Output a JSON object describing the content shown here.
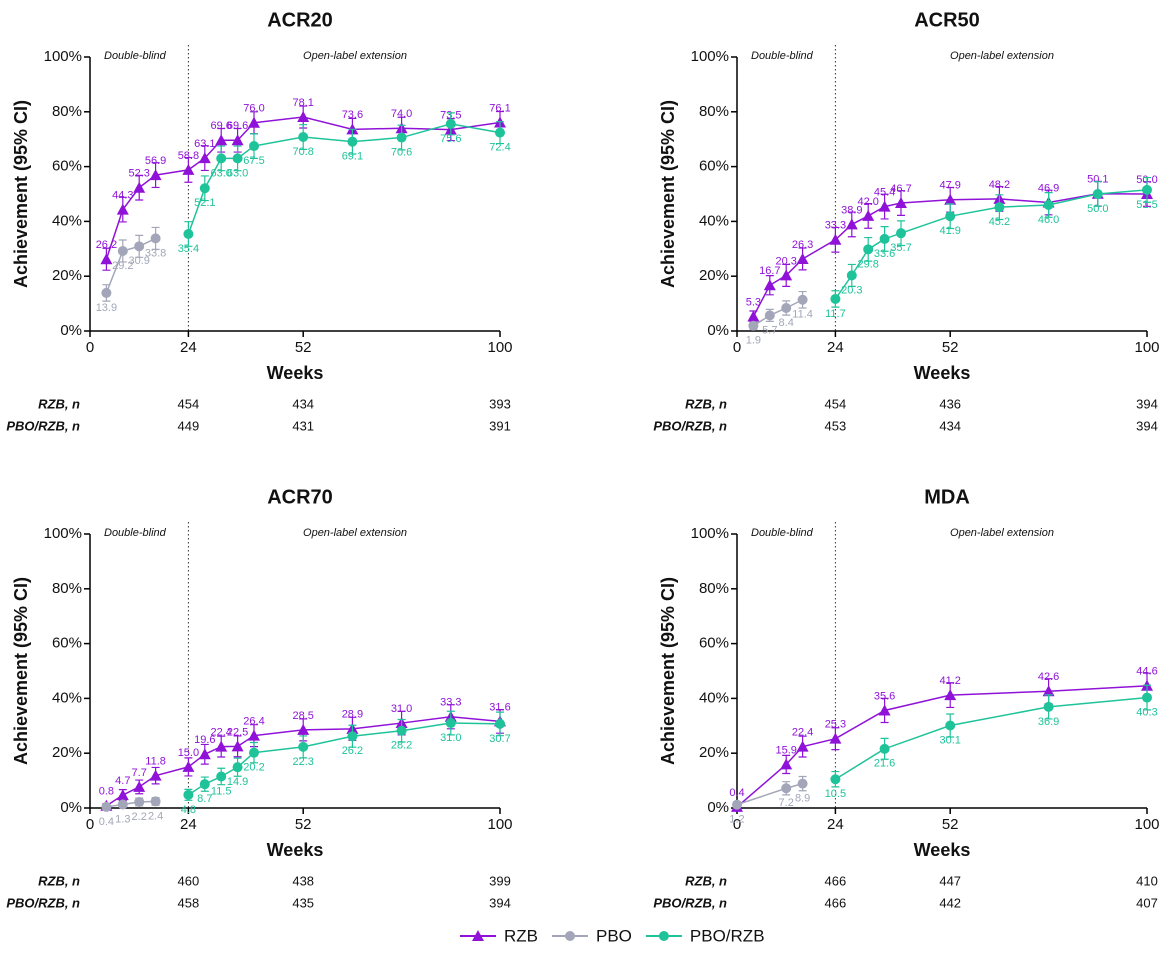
{
  "chart_data": [
    {
      "type": "line",
      "title": "ACR20",
      "x_label": "Weeks",
      "y_label": "Achievement (95% CI)",
      "xlim": [
        0,
        100
      ],
      "xticks": [
        0,
        24,
        52,
        100
      ],
      "ylim": [
        0,
        100
      ],
      "yticks": [
        {
          "value": 0,
          "label": "0%"
        },
        {
          "value": 20,
          "label": "20%"
        },
        {
          "value": 40,
          "label": "40%"
        },
        {
          "value": 60,
          "label": "60%"
        },
        {
          "value": 80,
          "label": "80%"
        },
        {
          "value": 100,
          "label": "100%"
        }
      ],
      "vline": 24,
      "annotations": [
        "Double-blind",
        "Open-label extension"
      ],
      "series": [
        {
          "name": "RZB",
          "color": "#9012d8",
          "marker": "triangle",
          "x": [
            4,
            8,
            12,
            16,
            24,
            28,
            32,
            36,
            40,
            52,
            64,
            76,
            88,
            100
          ],
          "values": [
            26.2,
            44.3,
            52.3,
            56.9,
            58.8,
            63.1,
            69.6,
            69.6,
            76.0,
            78.1,
            73.6,
            74.0,
            73.5,
            76.1
          ],
          "value_labels": [
            "26.2",
            "44.3",
            "52.3",
            "56.9",
            "58.8",
            "63.1",
            "69.6",
            "69.6",
            "76.0",
            "78.1",
            "73.6",
            "74.0",
            "73.5",
            "76.1"
          ],
          "errors": [
            4,
            4.5,
            4.5,
            4.5,
            4.5,
            4.5,
            4.3,
            4.3,
            4,
            4,
            4,
            4,
            4,
            4
          ]
        },
        {
          "name": "PBO",
          "color": "#a3a6b8",
          "marker": "circle",
          "x": [
            4,
            8,
            12,
            16
          ],
          "values": [
            13.9,
            29.2,
            30.9,
            33.8
          ],
          "value_labels": [
            "13.9",
            "29.2",
            "30.9",
            "33.8"
          ],
          "errors": [
            3,
            4,
            4,
            4
          ]
        },
        {
          "name": "PBO/RZB",
          "color": "#1fc39a",
          "marker": "circle",
          "x": [
            24,
            28,
            32,
            36,
            40,
            52,
            64,
            76,
            88,
            100
          ],
          "values": [
            35.4,
            52.1,
            63.0,
            63.0,
            67.5,
            70.8,
            69.1,
            70.6,
            75.6,
            72.4
          ],
          "value_labels": [
            "35.4",
            "52.1",
            "63.0",
            "63.0",
            "67.5",
            "70.8",
            "69.1",
            "70.6",
            "75.6",
            "72.4"
          ],
          "errors": [
            4.5,
            4.5,
            4.5,
            4.5,
            4.5,
            4.5,
            4.5,
            4.5,
            4,
            4
          ]
        }
      ],
      "table": {
        "rows": [
          {
            "name": "RZB, n",
            "values": [
              454,
              434,
              393
            ]
          },
          {
            "name": "PBO/RZB, n",
            "values": [
              449,
              431,
              391
            ]
          }
        ]
      }
    },
    {
      "type": "line",
      "title": "ACR50",
      "x_label": "Weeks",
      "y_label": "Achievement (95% CI)",
      "xlim": [
        0,
        100
      ],
      "xticks": [
        0,
        24,
        52,
        100
      ],
      "ylim": [
        0,
        100
      ],
      "yticks": [
        {
          "value": 0,
          "label": "0%"
        },
        {
          "value": 20,
          "label": "20%"
        },
        {
          "value": 40,
          "label": "40%"
        },
        {
          "value": 60,
          "label": "60%"
        },
        {
          "value": 80,
          "label": "80%"
        },
        {
          "value": 100,
          "label": "100%"
        }
      ],
      "vline": 24,
      "annotations": [
        "Double-blind",
        "Open-label extension"
      ],
      "series": [
        {
          "name": "RZB",
          "color": "#9012d8",
          "marker": "triangle",
          "x": [
            4,
            8,
            12,
            16,
            24,
            28,
            32,
            36,
            40,
            52,
            64,
            76,
            88,
            100
          ],
          "values": [
            5.3,
            16.7,
            20.3,
            26.3,
            33.3,
            38.9,
            42.0,
            45.4,
            46.7,
            47.9,
            48.2,
            46.9,
            50.1,
            50.0
          ],
          "value_labels": [
            "5.3",
            "16.7",
            "20.3",
            "26.3",
            "33.3",
            "38.9",
            "42.0",
            "45.4",
            "46.7",
            "47.9",
            "48.2",
            "46.9",
            "50.1",
            "50.0"
          ],
          "errors": [
            2,
            3.5,
            4,
            4,
            4.5,
            4.5,
            4.5,
            4.5,
            4.5,
            4.5,
            4.5,
            4.5,
            4.5,
            4.5
          ]
        },
        {
          "name": "PBO",
          "color": "#a3a6b8",
          "marker": "circle",
          "x": [
            4,
            8,
            12,
            16
          ],
          "values": [
            1.9,
            5.7,
            8.4,
            11.4
          ],
          "value_labels": [
            "1.9",
            "5.7",
            "8.4",
            "11.4"
          ],
          "errors": [
            1.3,
            2.2,
            2.6,
            3
          ]
        },
        {
          "name": "PBO/RZB",
          "color": "#1fc39a",
          "marker": "circle",
          "x": [
            24,
            28,
            32,
            36,
            40,
            52,
            64,
            76,
            88,
            100
          ],
          "values": [
            11.7,
            20.3,
            29.8,
            33.6,
            35.7,
            41.9,
            45.2,
            46.0,
            50.0,
            51.5
          ],
          "value_labels": [
            "11.7",
            "20.3",
            "29.8",
            "33.6",
            "35.7",
            "41.9",
            "45.2",
            "46.0",
            "50.0",
            "51.5"
          ],
          "errors": [
            3,
            4,
            4.3,
            4.5,
            4.5,
            4.5,
            4.5,
            4.5,
            4.5,
            4.5
          ]
        }
      ],
      "table": {
        "rows": [
          {
            "name": "RZB, n",
            "values": [
              454,
              436,
              394
            ]
          },
          {
            "name": "PBO/RZB, n",
            "values": [
              453,
              434,
              394
            ]
          }
        ]
      }
    },
    {
      "type": "line",
      "title": "ACR70",
      "x_label": "Weeks",
      "y_label": "Achievement (95% CI)",
      "xlim": [
        0,
        100
      ],
      "xticks": [
        0,
        24,
        52,
        100
      ],
      "ylim": [
        0,
        100
      ],
      "yticks": [
        {
          "value": 0,
          "label": "0%"
        },
        {
          "value": 20,
          "label": "20%"
        },
        {
          "value": 40,
          "label": "40%"
        },
        {
          "value": 60,
          "label": "60%"
        },
        {
          "value": 80,
          "label": "80%"
        },
        {
          "value": 100,
          "label": "100%"
        }
      ],
      "vline": 24,
      "annotations": [
        "Double-blind",
        "Open-label extension"
      ],
      "series": [
        {
          "name": "RZB",
          "color": "#9012d8",
          "marker": "triangle",
          "x": [
            4,
            8,
            12,
            16,
            24,
            28,
            32,
            36,
            40,
            52,
            64,
            76,
            88,
            100
          ],
          "values": [
            0.8,
            4.7,
            7.7,
            11.8,
            15.0,
            19.6,
            22.4,
            22.5,
            26.4,
            28.5,
            28.9,
            31.0,
            33.3,
            31.6
          ],
          "value_labels": [
            "0.8",
            "4.7",
            "7.7",
            "11.8",
            "15.0",
            "19.6",
            "22.4",
            "22.5",
            "26.4",
            "28.5",
            "28.9",
            "31.0",
            "33.3",
            "31.6"
          ],
          "errors": [
            0.8,
            2,
            2.5,
            3,
            3.3,
            3.6,
            3.8,
            3.8,
            4,
            4,
            4.2,
            4.3,
            4.4,
            4.3
          ]
        },
        {
          "name": "PBO",
          "color": "#a3a6b8",
          "marker": "circle",
          "x": [
            4,
            8,
            12,
            16
          ],
          "values": [
            0.4,
            1.3,
            2.2,
            2.4
          ],
          "value_labels": [
            "0.4",
            "1.3",
            "2.2",
            "2.4"
          ],
          "errors": [
            0.6,
            1,
            1.4,
            1.4
          ]
        },
        {
          "name": "PBO/RZB",
          "color": "#1fc39a",
          "marker": "circle",
          "x": [
            24,
            28,
            32,
            36,
            40,
            52,
            64,
            76,
            88,
            100
          ],
          "values": [
            4.8,
            8.7,
            11.5,
            14.9,
            20.2,
            22.3,
            26.2,
            28.2,
            31.0,
            30.7
          ],
          "value_labels": [
            "4.8",
            "8.7",
            "11.5",
            "14.9",
            "20.2",
            "22.3",
            "26.2",
            "28.2",
            "31.0",
            "30.7"
          ],
          "errors": [
            2,
            2.6,
            3,
            3.3,
            3.7,
            4,
            4,
            4.1,
            4.3,
            4.3
          ]
        }
      ],
      "table": {
        "rows": [
          {
            "name": "RZB, n",
            "values": [
              460,
              438,
              399
            ]
          },
          {
            "name": "PBO/RZB, n",
            "values": [
              458,
              435,
              394
            ]
          }
        ]
      }
    },
    {
      "type": "line",
      "title": "MDA",
      "x_label": "Weeks",
      "y_label": "Achievement (95% CI)",
      "xlim": [
        0,
        100
      ],
      "xticks": [
        0,
        24,
        52,
        100
      ],
      "ylim": [
        0,
        100
      ],
      "yticks": [
        {
          "value": 0,
          "label": "0%"
        },
        {
          "value": 20,
          "label": "20%"
        },
        {
          "value": 40,
          "label": "40%"
        },
        {
          "value": 60,
          "label": "60%"
        },
        {
          "value": 80,
          "label": "80%"
        },
        {
          "value": 100,
          "label": "100%"
        }
      ],
      "vline": 24,
      "annotations": [
        "Double-blind",
        "Open-label extension"
      ],
      "series": [
        {
          "name": "RZB",
          "color": "#9012d8",
          "marker": "triangle",
          "x": [
            0,
            12,
            16,
            24,
            36,
            52,
            76,
            100
          ],
          "values": [
            0.4,
            15.9,
            22.4,
            25.3,
            35.6,
            41.2,
            42.6,
            44.6
          ],
          "value_labels": [
            "0.4",
            "15.9",
            "22.4",
            "25.3",
            "35.6",
            "41.2",
            "42.6",
            "44.6"
          ],
          "errors": [
            0.6,
            3.3,
            3.8,
            4,
            4.4,
            4.5,
            4.6,
            4.6
          ]
        },
        {
          "name": "PBO",
          "color": "#a3a6b8",
          "marker": "circle",
          "x": [
            0,
            12,
            16
          ],
          "values": [
            1.2,
            7.2,
            8.9
          ],
          "value_labels": [
            "1.2",
            "7.2",
            "8.9"
          ],
          "errors": [
            1,
            2.4,
            2.6
          ]
        },
        {
          "name": "PBO/RZB",
          "color": "#1fc39a",
          "marker": "circle",
          "x": [
            24,
            36,
            52,
            76,
            100
          ],
          "values": [
            10.5,
            21.6,
            30.1,
            36.9,
            40.3
          ],
          "value_labels": [
            "10.5",
            "21.6",
            "30.1",
            "36.9",
            "40.3"
          ],
          "errors": [
            2.8,
            3.8,
            4.2,
            4.4,
            4.5
          ]
        }
      ],
      "table": {
        "rows": [
          {
            "name": "RZB, n",
            "values": [
              466,
              447,
              410
            ]
          },
          {
            "name": "PBO/RZB, n",
            "values": [
              466,
              442,
              407
            ]
          }
        ]
      }
    }
  ]
}
